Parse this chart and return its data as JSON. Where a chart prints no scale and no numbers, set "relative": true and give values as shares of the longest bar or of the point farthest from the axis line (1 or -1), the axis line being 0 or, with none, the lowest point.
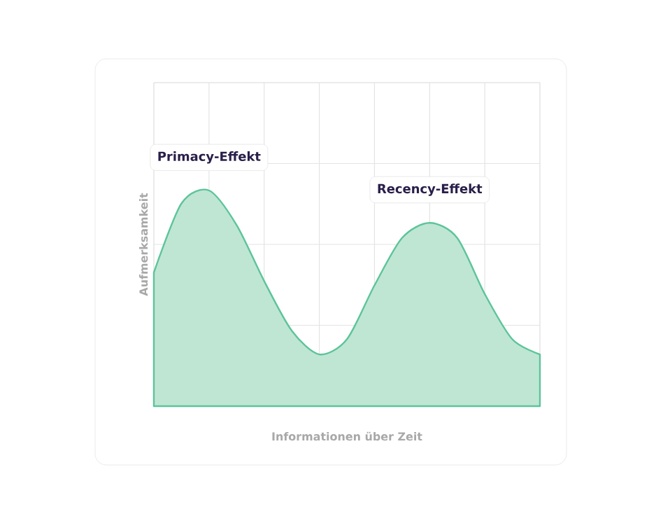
{
  "chart_data": {
    "type": "area",
    "relative": true,
    "xlabel": "Informationen über Zeit",
    "ylabel": "Aufmerksamkeit",
    "categories": [
      null,
      null,
      null,
      null,
      null,
      null,
      null,
      null,
      null,
      null,
      null,
      null,
      null,
      null,
      null
    ],
    "values": [
      0.62,
      0.94,
      1,
      0.84,
      0.58,
      0.35,
      0.24,
      0.31,
      0.56,
      0.78,
      0.85,
      0.78,
      0.52,
      0.31,
      0.24
    ],
    "color": "#5cc49a",
    "grid": true,
    "annotations": [
      "Primacy-Effekt",
      "Recency-Effekt"
    ]
  }
}
